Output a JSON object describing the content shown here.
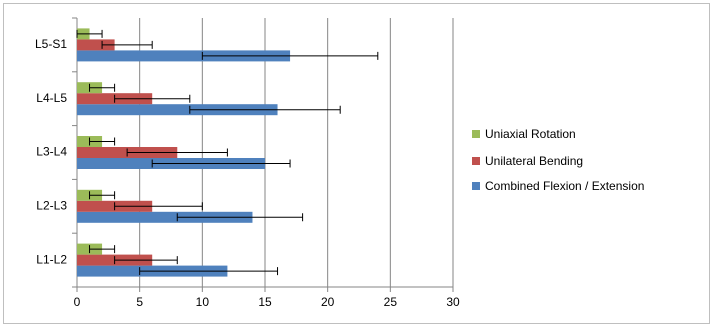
{
  "chart_data": {
    "type": "bar",
    "orientation": "horizontal",
    "categories": [
      "L1-L2",
      "L2-L3",
      "L3-L4",
      "L4-L5",
      "L5-S1"
    ],
    "series": [
      {
        "name": "Combined Flexion / Extension",
        "color": "#4f81bd",
        "values": [
          12,
          14,
          15,
          16,
          17
        ],
        "err_minus": [
          7,
          6,
          9,
          7,
          7
        ],
        "err_plus": [
          4,
          4,
          2,
          5,
          7
        ]
      },
      {
        "name": "Unilateral Bending",
        "color": "#c0504d",
        "values": [
          6,
          6,
          8,
          6,
          3
        ],
        "err_minus": [
          3,
          3,
          4,
          3,
          1
        ],
        "err_plus": [
          2,
          4,
          4,
          3,
          3
        ]
      },
      {
        "name": "Uniaxial Rotation",
        "color": "#9bbb59",
        "values": [
          2,
          2,
          2,
          2,
          1
        ],
        "err_minus": [
          1,
          1,
          1,
          1,
          1
        ],
        "err_plus": [
          1,
          1,
          1,
          1,
          1
        ]
      }
    ],
    "xlim": [
      0,
      30
    ],
    "xticks": [
      0,
      5,
      10,
      15,
      20,
      25,
      30
    ],
    "grid": true,
    "legend": "right"
  }
}
